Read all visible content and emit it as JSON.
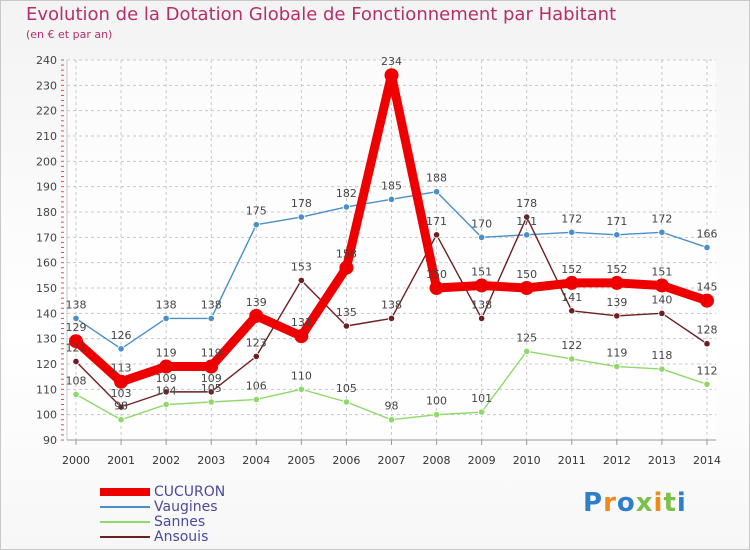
{
  "title": "Evolution de la Dotation Globale de Fonctionnement par Habitant",
  "subtitle": "(en € et par an)",
  "chart_data": {
    "type": "line",
    "x": [
      2000,
      2001,
      2002,
      2003,
      2004,
      2005,
      2006,
      2007,
      2008,
      2009,
      2010,
      2011,
      2012,
      2013,
      2014
    ],
    "ylim": [
      90,
      240
    ],
    "yticks": [
      90,
      100,
      110,
      120,
      130,
      140,
      150,
      160,
      170,
      180,
      190,
      200,
      210,
      220,
      230,
      240
    ],
    "grid": true,
    "legend_position": "bottom-left",
    "series": [
      {
        "name": "Vaugines",
        "color": "#4a8fc8",
        "values": [
          138,
          126,
          138,
          138,
          175,
          178,
          182,
          185,
          188,
          170,
          171,
          172,
          171,
          172,
          166
        ]
      },
      {
        "name": "Sannes",
        "color": "#8fd96a",
        "values": [
          108,
          98,
          104,
          105,
          106,
          110,
          105,
          98,
          100,
          101,
          125,
          122,
          119,
          118,
          112
        ]
      },
      {
        "name": "Ansouis",
        "color": "#6e1f22",
        "values": [
          121,
          103,
          109,
          109,
          123,
          153,
          135,
          138,
          171,
          138,
          178,
          141,
          139,
          140,
          128
        ]
      },
      {
        "name": "CUCURON",
        "color": "#ee0000",
        "values": [
          129,
          113,
          119,
          119,
          139,
          131,
          158,
          234,
          150,
          151,
          150,
          152,
          152,
          151,
          145
        ]
      }
    ]
  },
  "legend": [
    {
      "name": "CUCURON",
      "color": "#ee0000"
    },
    {
      "name": "Vaugines",
      "color": "#4a8fc8"
    },
    {
      "name": "Sannes",
      "color": "#8fd96a"
    },
    {
      "name": "Ansouis",
      "color": "#6e1f22"
    }
  ],
  "logo": {
    "letters": [
      "P",
      "r",
      "o",
      "x",
      "i",
      "t",
      "i"
    ],
    "colors": [
      "#2f7fc8",
      "#ee8a1a",
      "#2f7fc8",
      "#7ac04a",
      "#ee8a1a",
      "#7ac04a",
      "#2f7fc8"
    ]
  }
}
